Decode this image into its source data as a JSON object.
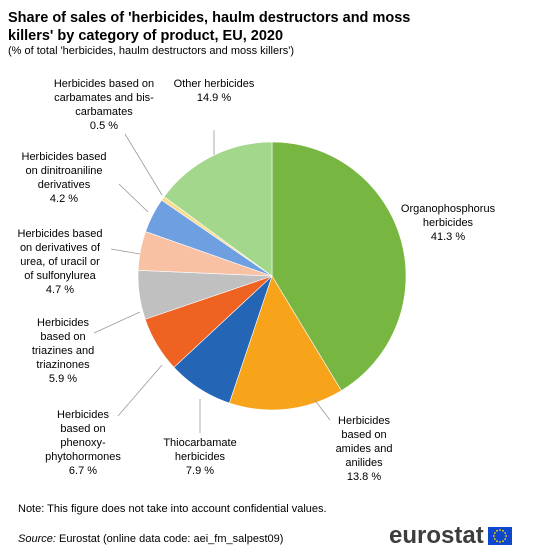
{
  "chart_data": {
    "type": "pie",
    "title": "Share of sales of 'herbicides, haulm destructors and moss killers' by category of product, EU, 2020",
    "subtitle": "(% of total 'herbicides, haulm destructors and moss killers')",
    "slices": [
      {
        "label": [
          "Organophosphorus",
          "herbicides"
        ],
        "value": 41.3,
        "value_text": "41.3 %",
        "color": "#76b641"
      },
      {
        "label": [
          "Herbicides",
          "based on",
          "amides and",
          "anilides"
        ],
        "value": 13.8,
        "value_text": "13.8 %",
        "color": "#f7a41a"
      },
      {
        "label": [
          "Thiocarbamate",
          "herbicides"
        ],
        "value": 7.9,
        "value_text": "7.9 %",
        "color": "#2465b5"
      },
      {
        "label": [
          "Herbicides",
          "based on",
          "phenoxy-",
          "phytohormones"
        ],
        "value": 6.7,
        "value_text": "6.7 %",
        "color": "#ee6222"
      },
      {
        "label": [
          "Herbicides",
          "based on",
          "triazines and",
          "triazinones"
        ],
        "value": 5.9,
        "value_text": "5.9 %",
        "color": "#c0c0c0"
      },
      {
        "label": [
          "Herbicides based",
          "on derivatives  of",
          "urea, of uracil or",
          "of sulfonylurea"
        ],
        "value": 4.7,
        "value_text": "4.7 %",
        "color": "#f8c1a4"
      },
      {
        "label": [
          "Herbicides based",
          "on dinitroaniline",
          "derivatives"
        ],
        "value": 4.2,
        "value_text": "4.2 %",
        "color": "#6e9fe1"
      },
      {
        "label": [
          "Herbicides  based on",
          "carbamates and bis-",
          "carbamates"
        ],
        "value": 0.5,
        "value_text": "0.5 %",
        "color": "#fbdc8c"
      },
      {
        "label": [
          "Other herbicides"
        ],
        "value": 14.9,
        "value_text": "14.9 %",
        "color": "#a3d78c"
      }
    ]
  },
  "footer": {
    "note": "Note: This figure  does not take into account confidential values.",
    "source_label": "Source:",
    "source_text": " Eurostat (online data code: aei_fm_salpest09)",
    "logo_text": "eurostat"
  }
}
